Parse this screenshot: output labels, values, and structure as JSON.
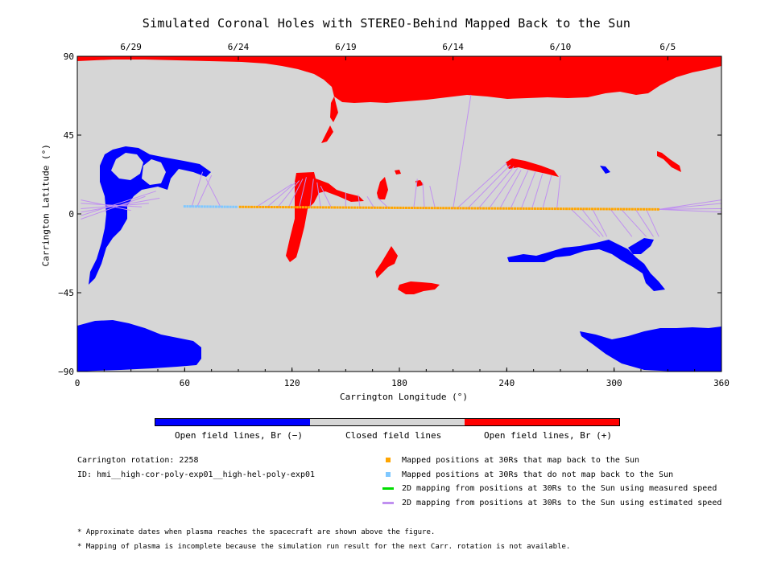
{
  "chart_data": {
    "type": "scatter",
    "title": "Simulated Coronal Holes with STEREO-Behind Mapped Back to the Sun",
    "xlabel": "Carrington Longitude (°)",
    "ylabel": "Carrington Latitude (°)",
    "xlim": [
      0,
      360
    ],
    "ylim": [
      -90,
      90
    ],
    "xticks": [
      0,
      60,
      120,
      180,
      240,
      300,
      360
    ],
    "yticks": [
      -90,
      -45,
      0,
      45,
      90
    ],
    "top_axis": {
      "labels": [
        "6/29",
        "6/24",
        "6/19",
        "6/14",
        "6/10",
        "6/5"
      ],
      "longitudes": [
        30,
        90,
        150,
        210,
        270,
        330
      ]
    },
    "colors": {
      "open_negative": "#0000ff",
      "closed": "#d6d6d6",
      "open_positive": "#ff0000",
      "mapped": "#ffa500",
      "unmapped": "#80c8ff",
      "measured": "#00dd00",
      "estimated": "#c090f0"
    },
    "colorbar": {
      "labels": [
        "Open field lines, Br (−)",
        "Closed field lines",
        "Open field lines, Br (+)"
      ]
    },
    "legend": [
      {
        "kind": "square",
        "color": "#ffa500",
        "label": "Mapped positions at 30Rs that map back to the Sun"
      },
      {
        "kind": "square",
        "color": "#80c8ff",
        "label": "Mapped positions at 30Rs that do not map back to the Sun"
      },
      {
        "kind": "line",
        "color": "#00dd00",
        "label": "2D mapping from positions at 30Rs to the Sun using measured speed"
      },
      {
        "kind": "line",
        "color": "#c090f0",
        "label": "2D mapping from positions at 30Rs to the Sun using estimated speed"
      }
    ],
    "unmapped_points": {
      "lon_start": 60,
      "lon_end": 89,
      "lat_start": 4.3,
      "lat_end": 4.0
    },
    "mapped_points": {
      "lon_start": 91,
      "lon_end": 325,
      "lat_start": 4.0,
      "lat_end": 2.6
    },
    "mapping_lines": [
      [
        64,
        4.2,
        70,
        24
      ],
      [
        67,
        4.2,
        75,
        22
      ],
      [
        80,
        4.1,
        72,
        20
      ],
      [
        100,
        3.9,
        120,
        17
      ],
      [
        106,
        3.8,
        122,
        18
      ],
      [
        112,
        3.8,
        124,
        19
      ],
      [
        118,
        3.7,
        126,
        20
      ],
      [
        124,
        3.7,
        128,
        21
      ],
      [
        130,
        3.6,
        132,
        20
      ],
      [
        136,
        3.6,
        134,
        18
      ],
      [
        142,
        3.5,
        136,
        16
      ],
      [
        150,
        3.5,
        150,
        12
      ],
      [
        158,
        3.4,
        157,
        11
      ],
      [
        166,
        3.3,
        162,
        10
      ],
      [
        174,
        3.3,
        168,
        9
      ],
      [
        188,
        3.2,
        190,
        20
      ],
      [
        194,
        3.2,
        193,
        18
      ],
      [
        200,
        3.1,
        197,
        16
      ],
      [
        210,
        3.0,
        220,
        68
      ],
      [
        212,
        3.0,
        240,
        29
      ],
      [
        218,
        3.0,
        242,
        28
      ],
      [
        224,
        2.9,
        244,
        27
      ],
      [
        230,
        2.9,
        246,
        26
      ],
      [
        236,
        2.8,
        248,
        25
      ],
      [
        242,
        2.8,
        252,
        25
      ],
      [
        248,
        2.8,
        256,
        24
      ],
      [
        254,
        2.8,
        260,
        23
      ],
      [
        260,
        2.7,
        265,
        22
      ],
      [
        268,
        2.7,
        270,
        22
      ],
      [
        276,
        2.7,
        292,
        -13
      ],
      [
        282,
        2.7,
        294,
        -13
      ],
      [
        288,
        2.6,
        296,
        -13
      ],
      [
        298,
        2.6,
        310,
        -13
      ],
      [
        304,
        2.6,
        318,
        -13
      ],
      [
        312,
        2.6,
        322,
        -13
      ],
      [
        318,
        2.6,
        325,
        -13
      ],
      [
        325,
        2.6,
        360,
        8
      ],
      [
        325,
        2.6,
        360,
        6
      ],
      [
        325,
        2.6,
        360,
        3
      ],
      [
        325,
        2.6,
        360,
        1
      ],
      [
        2,
        8,
        30,
        2
      ],
      [
        2,
        6,
        36,
        4
      ],
      [
        2,
        3,
        40,
        6
      ],
      [
        2,
        1,
        46,
        9
      ],
      [
        2,
        -1,
        44,
        13
      ],
      [
        2,
        -3,
        38,
        10
      ]
    ]
  },
  "info": {
    "rotation": "Carrington rotation: 2258",
    "id": "ID: hmi__high-cor-poly-exp01__high-hel-poly-exp01"
  },
  "notes": [
    "* Approximate dates when plasma reaches the spacecraft are shown above the figure.",
    "* Mapping of plasma is incomplete because the simulation run result for the next Carr. rotation is not available."
  ]
}
